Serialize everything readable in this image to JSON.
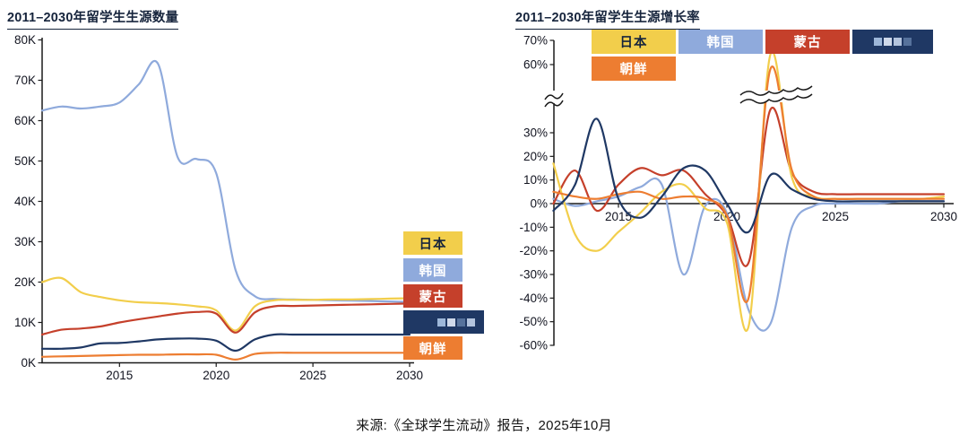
{
  "page": {
    "caption": "来源:《全球学生流动》报告，2025年10月",
    "background": "#ffffff"
  },
  "colors": {
    "japan": "#F2CE4B",
    "korea": "#8FAADC",
    "mongolia": "#C5402B",
    "censored": "#1F3864",
    "nkorea": "#ED7D31",
    "axis": "#1a1a1a",
    "tick_text": "#121420",
    "title_text": "#16243c"
  },
  "chart_data": [
    {
      "type": "line",
      "title": "2011–2030年留学生生源数量",
      "x": [
        2011,
        2012,
        2013,
        2014,
        2015,
        2016,
        2017,
        2018,
        2019,
        2020,
        2021,
        2022,
        2023,
        2024,
        2025,
        2026,
        2027,
        2028,
        2029,
        2030
      ],
      "xticks": [
        2015,
        2020,
        2025,
        2030
      ],
      "xtick_labels": [
        "2015",
        "2020",
        "2025",
        "2030"
      ],
      "ylim_thousands": [
        0,
        80
      ],
      "ytick_values": [
        0,
        10,
        20,
        30,
        40,
        50,
        60,
        70,
        80
      ],
      "ytick_labels": [
        "0K",
        "10K",
        "20K",
        "30K",
        "40K",
        "50K",
        "60K",
        "70K",
        "80K"
      ],
      "values_unit": "thousands of students",
      "grid": false,
      "legend_position": "inside-right",
      "draw_order": [
        1,
        0,
        2,
        3,
        4
      ],
      "series": [
        {
          "key": "japan",
          "name": "日本",
          "color": "#F2CE4B",
          "label_color": "#16243c",
          "redacted": false,
          "values": [
            20,
            21,
            17.5,
            16.3,
            15.5,
            15,
            14.8,
            14.5,
            14,
            13,
            8,
            14,
            15.5,
            15.6,
            15.6,
            15.7,
            15.7,
            15.8,
            15.9,
            16
          ]
        },
        {
          "key": "korea",
          "name": "韩国",
          "color": "#8FAADC",
          "label_color": "#ffffff",
          "redacted": false,
          "values": [
            62.5,
            63.5,
            63,
            63.5,
            64.5,
            69,
            74,
            51,
            50.5,
            47,
            23,
            16.5,
            15.8,
            15.7,
            15.6,
            15.5,
            15.4,
            15.3,
            15.2,
            15.1
          ]
        },
        {
          "key": "mongolia",
          "name": "蒙古",
          "color": "#C5402B",
          "label_color": "#ffffff",
          "redacted": false,
          "values": [
            7,
            8.2,
            8.5,
            9,
            10,
            10.8,
            11.5,
            12.2,
            12.6,
            12.2,
            7.5,
            12.5,
            14,
            14.1,
            14.2,
            14.3,
            14.4,
            14.5,
            14.6,
            14.7
          ]
        },
        {
          "key": "censored",
          "name": "",
          "color": "#1F3864",
          "label_color": "#ffffff",
          "redacted": true,
          "values": [
            3.5,
            3.5,
            3.8,
            4.8,
            4.9,
            5.3,
            5.8,
            6,
            6,
            5.5,
            3,
            5.8,
            7,
            7,
            7,
            7,
            7,
            7,
            7,
            7
          ]
        },
        {
          "key": "nkorea",
          "name": "朝鲜",
          "color": "#ED7D31",
          "label_color": "#ffffff",
          "redacted": false,
          "values": [
            1.5,
            1.6,
            1.7,
            1.8,
            1.9,
            2,
            2,
            2.1,
            2.1,
            2,
            0.8,
            2.2,
            2.5,
            2.5,
            2.5,
            2.5,
            2.5,
            2.5,
            2.5,
            2.5
          ]
        }
      ]
    },
    {
      "type": "line",
      "title": "2011–2030年留学生生源增长率",
      "x": [
        2012,
        2013,
        2014,
        2015,
        2016,
        2017,
        2018,
        2019,
        2020,
        2021,
        2022,
        2023,
        2024,
        2025,
        2026,
        2027,
        2028,
        2029,
        2030
      ],
      "xticks": [
        2015,
        2020,
        2025,
        2030
      ],
      "xtick_labels": [
        "2015",
        "2020",
        "2025",
        "2030"
      ],
      "ylim_percent": [
        -60,
        70
      ],
      "axis_break": {
        "from": 35,
        "to": 55
      },
      "ytick_values": [
        70,
        60,
        30,
        20,
        10,
        0,
        -10,
        -20,
        -30,
        -40,
        -50,
        -60
      ],
      "ytick_labels": [
        "70%",
        "60%",
        "30%",
        "20%",
        "10%",
        "0%",
        "-10%",
        "-20%",
        "-30%",
        "-40%",
        "-50%",
        "-60%"
      ],
      "values_unit": "percent year-over-year growth",
      "grid": false,
      "legend_position": "top",
      "draw_order": [
        1,
        2,
        0,
        4,
        3
      ],
      "series": [
        {
          "key": "japan",
          "name": "日本",
          "color": "#F2CE4B",
          "label_color": "#16243c",
          "redacted": false,
          "values": [
            17,
            -13,
            -20,
            -12,
            -4,
            5,
            8,
            -2,
            -8,
            -52,
            64,
            11,
            3,
            2,
            2,
            2,
            2,
            2,
            3
          ]
        },
        {
          "key": "korea",
          "name": "韩国",
          "color": "#8FAADC",
          "label_color": "#ffffff",
          "redacted": false,
          "values": [
            2,
            -1,
            1,
            3,
            7,
            8,
            -30,
            -1,
            -4,
            -45,
            -51,
            -10,
            -1,
            0,
            0,
            0,
            1,
            1,
            1
          ]
        },
        {
          "key": "mongolia",
          "name": "蒙古",
          "color": "#C5402B",
          "label_color": "#ffffff",
          "redacted": false,
          "values": [
            0,
            14,
            -3,
            8,
            15,
            12,
            14,
            4,
            -5,
            -25,
            40,
            13,
            5,
            4,
            4,
            4,
            4,
            4,
            4
          ]
        },
        {
          "key": "censored",
          "name": "",
          "color": "#1F3864",
          "label_color": "#ffffff",
          "redacted": true,
          "values": [
            -3,
            8,
            36,
            2,
            -6,
            3,
            15,
            14,
            0,
            -12,
            12,
            6,
            2,
            1,
            1,
            1,
            1,
            1,
            1
          ]
        },
        {
          "key": "nkorea",
          "name": "朝鲜",
          "color": "#ED7D31",
          "label_color": "#ffffff",
          "redacted": false,
          "values": [
            5,
            3,
            2,
            4,
            5,
            2,
            3,
            2,
            -5,
            -40,
            58,
            14,
            3,
            2,
            2,
            2,
            2,
            2,
            2
          ]
        }
      ]
    }
  ]
}
